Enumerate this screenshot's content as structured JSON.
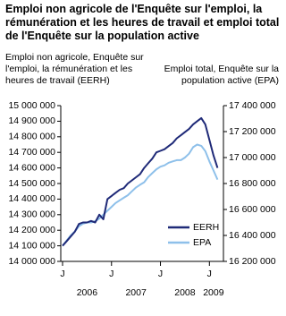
{
  "chart_data": {
    "type": "line",
    "title": "Emploi non agricole de l'Enquête sur l'emploi, la rémunération et les heures de travail et emploi total de l'Enquête sur la population active",
    "ylabel": "Emploi non agricole, Enquête sur l'emploi, la rémunération et les heures de travail (EERH)",
    "y2label": "Emploi total, Enquête sur la population active (EPA)",
    "categories": [
      "J",
      null,
      null,
      null,
      null,
      null,
      null,
      null,
      null,
      null,
      null,
      null,
      "J",
      null,
      null,
      null,
      null,
      null,
      null,
      null,
      null,
      null,
      null,
      null,
      "J",
      null,
      null,
      null,
      null,
      null,
      null,
      null,
      null,
      null,
      null,
      null,
      "J",
      null,
      null
    ],
    "years": [
      "2006",
      "2007",
      "2008",
      "2009"
    ],
    "ylim": [
      14000000,
      15000000
    ],
    "yticks": [
      {
        "value": 14000000,
        "label": "14 000 000"
      },
      {
        "value": 14100000,
        "label": "14 100 000"
      },
      {
        "value": 14200000,
        "label": "14 200 000"
      },
      {
        "value": 14300000,
        "label": "14 300 000"
      },
      {
        "value": 14400000,
        "label": "14 400 000"
      },
      {
        "value": 14500000,
        "label": "14 500 000"
      },
      {
        "value": 14600000,
        "label": "14 600 000"
      },
      {
        "value": 14700000,
        "label": "14 700 000"
      },
      {
        "value": 14800000,
        "label": "14 800 000"
      },
      {
        "value": 14900000,
        "label": "14 900 000"
      },
      {
        "value": 15000000,
        "label": "15 000 000"
      }
    ],
    "y2lim": [
      16200000,
      17400000
    ],
    "y2ticks": [
      {
        "value": 16200000,
        "label": "16 200 000"
      },
      {
        "value": 16400000,
        "label": "16 400 000"
      },
      {
        "value": 16600000,
        "label": "16 600 000"
      },
      {
        "value": 16800000,
        "label": "16 800 000"
      },
      {
        "value": 17000000,
        "label": "17 000 000"
      },
      {
        "value": 17200000,
        "label": "17 200 000"
      },
      {
        "value": 17400000,
        "label": "17 400 000"
      }
    ],
    "legend": "lower right",
    "series": [
      {
        "name": "EERH",
        "color": "#1f2a78",
        "values": [
          14100000,
          14130000,
          14160000,
          14190000,
          14240000,
          14250000,
          14250000,
          14260000,
          14250000,
          14300000,
          14270000,
          14400000,
          14420000,
          14440000,
          14460000,
          14470000,
          14500000,
          14520000,
          14540000,
          14560000,
          14600000,
          14630000,
          14660000,
          14700000,
          14710000,
          14720000,
          14740000,
          14760000,
          14790000,
          14810000,
          14830000,
          14850000,
          14880000,
          14900000,
          14920000,
          14880000,
          14780000,
          14680000,
          14600000
        ]
      },
      {
        "name": "EPA",
        "color": "#8ec0ea",
        "axis": "y2",
        "values": [
          16320000,
          16360000,
          16400000,
          16430000,
          16470000,
          16490000,
          16500000,
          16500000,
          16510000,
          16530000,
          16560000,
          16590000,
          16620000,
          16650000,
          16670000,
          16690000,
          16710000,
          16740000,
          16770000,
          16790000,
          16810000,
          16850000,
          16880000,
          16910000,
          16930000,
          16940000,
          16960000,
          16970000,
          16980000,
          16980000,
          17000000,
          17030000,
          17080000,
          17100000,
          17090000,
          17050000,
          16970000,
          16900000,
          16830000
        ]
      }
    ]
  }
}
